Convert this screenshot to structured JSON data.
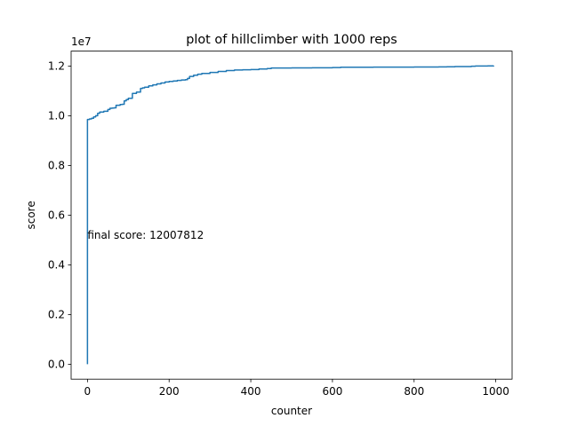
{
  "chart_data": {
    "type": "line",
    "title": "plot of hillclimber with 1000 reps",
    "xlabel": "counter",
    "ylabel": "score",
    "y_offset_label": "1e7",
    "annotation": "final score: 12007812",
    "xlim": [
      -40,
      1040
    ],
    "ylim": [
      -600000,
      12600000
    ],
    "x_ticks": [
      0,
      200,
      400,
      600,
      800,
      1000
    ],
    "x_tick_labels": [
      "0",
      "200",
      "400",
      "600",
      "800",
      "1000"
    ],
    "y_ticks": [
      0,
      2000000,
      4000000,
      6000000,
      8000000,
      10000000,
      12000000
    ],
    "y_tick_labels": [
      "0.0",
      "0.2",
      "0.4",
      "0.6",
      "0.8",
      "1.0",
      "1.2"
    ],
    "grid": false,
    "line_color": "#1f77b4",
    "series": [
      {
        "x": [
          0,
          0,
          5,
          10,
          15,
          20,
          25,
          30,
          40,
          50,
          55,
          60,
          65,
          70,
          80,
          85,
          90,
          95,
          100,
          110,
          120,
          130,
          135,
          140,
          150,
          160,
          170,
          180,
          190,
          200,
          210,
          220,
          230,
          240,
          245,
          250,
          260,
          270,
          280,
          300,
          320,
          340,
          360,
          380,
          400,
          420,
          440,
          450,
          500,
          550,
          600,
          620,
          700,
          800,
          860,
          880,
          900,
          940,
          950,
          980,
          995
        ],
        "y": [
          0,
          9850000,
          9870000,
          9900000,
          9950000,
          10000000,
          10100000,
          10150000,
          10180000,
          10250000,
          10300000,
          10310000,
          10320000,
          10420000,
          10450000,
          10460000,
          10600000,
          10650000,
          10700000,
          10900000,
          10950000,
          11100000,
          11120000,
          11150000,
          11200000,
          11240000,
          11280000,
          11320000,
          11360000,
          11380000,
          11400000,
          11420000,
          11440000,
          11450000,
          11500000,
          11580000,
          11630000,
          11670000,
          11700000,
          11740000,
          11780000,
          11820000,
          11840000,
          11850000,
          11860000,
          11880000,
          11900000,
          11920000,
          11925000,
          11930000,
          11940000,
          11950000,
          11955000,
          11960000,
          11965000,
          11970000,
          11980000,
          11990000,
          12000000,
          12005000,
          12007812
        ]
      }
    ],
    "annotation_pos": [
      0,
      5200000
    ]
  }
}
